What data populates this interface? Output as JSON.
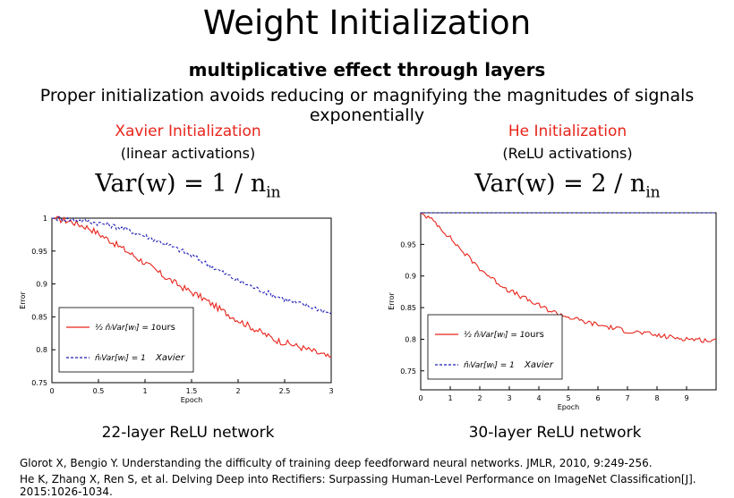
{
  "title": "Weight Initialization",
  "subtitle": "multiplicative effect through layers",
  "tagline": "Proper initialization avoids reducing or magnifying the magnitudes of signals exponentially",
  "left_panel": {
    "method": "Xavier Initialization",
    "activation": "(linear activations)",
    "formula_lhs": "Var(w) = 1 / n",
    "formula_sub": "in",
    "network": "22-layer ReLU network"
  },
  "right_panel": {
    "method": "He Initialization",
    "activation": "(ReLU activations)",
    "formula_lhs": "Var(w) = 2 / n",
    "formula_sub": "in",
    "network": "30-layer ReLU network"
  },
  "references": [
    "Glorot X, Bengio Y. Understanding the difficulty of training deep feedforward neural networks. JMLR, 2010, 9:249-256.",
    "He K, Zhang X, Ren S, et al. Delving Deep into Rectifiers: Surpassing Human-Level Performance on ImageNet Classification[J]. 2015:1026-1034."
  ],
  "chart_data": [
    {
      "type": "line",
      "xlabel": "Epoch",
      "ylabel": "Error",
      "xlim": [
        0,
        3
      ],
      "ylim": [
        0.75,
        1.0
      ],
      "xticks": [
        "0",
        "0.5",
        "1",
        "1.5",
        "2",
        "2.5",
        "3"
      ],
      "yticks": [
        "0.75",
        "0.8",
        "0.85",
        "0.9",
        "0.95",
        "1"
      ],
      "legend_position": "bottom-left",
      "series": [
        {
          "name": "1/2 n̂ₗVar[wₗ] = 1  ours",
          "legend_math": "½ n̂ₗVar[wₗ] = 1",
          "legend_tag": "ours",
          "color": "#e8251c",
          "style": "solid",
          "x": [
            0,
            0.2,
            0.4,
            0.6,
            0.8,
            1.0,
            1.2,
            1.4,
            1.6,
            1.8,
            2.0,
            2.2,
            2.4,
            2.6,
            2.8,
            3.0
          ],
          "y": [
            1.0,
            0.995,
            0.985,
            0.968,
            0.95,
            0.932,
            0.912,
            0.895,
            0.88,
            0.862,
            0.845,
            0.83,
            0.815,
            0.807,
            0.798,
            0.787
          ]
        },
        {
          "name": "n̂ₗVar[wₗ] = 1  Xavier",
          "legend_math": "n̂ₗVar[wₗ] = 1",
          "legend_tag": "Xavier",
          "color": "#1f1fb4",
          "style": "dashed",
          "x": [
            0,
            0.2,
            0.4,
            0.6,
            0.8,
            1.0,
            1.2,
            1.4,
            1.6,
            1.8,
            2.0,
            2.2,
            2.4,
            2.6,
            2.8,
            3.0
          ],
          "y": [
            1.0,
            0.998,
            0.995,
            0.99,
            0.983,
            0.973,
            0.962,
            0.95,
            0.936,
            0.92,
            0.905,
            0.893,
            0.882,
            0.872,
            0.865,
            0.855
          ]
        }
      ]
    },
    {
      "type": "line",
      "xlabel": "Epoch",
      "ylabel": "Error",
      "xlim": [
        0,
        10
      ],
      "ylim": [
        0.72,
        1.0
      ],
      "xticks": [
        "0",
        "1",
        "2",
        "3",
        "4",
        "5",
        "6",
        "7",
        "8",
        "9"
      ],
      "yticks": [
        "0.75",
        "0.8",
        "0.85",
        "0.9",
        "0.95"
      ],
      "legend_position": "bottom-left",
      "series": [
        {
          "name": "1/2 n̂ₗVar[wₗ] = 1  ours",
          "legend_math": "½ n̂ₗVar[wₗ] = 1",
          "legend_tag": "ours",
          "color": "#e8251c",
          "style": "solid",
          "x": [
            0,
            0.5,
            1,
            1.5,
            2,
            2.5,
            3,
            3.5,
            4,
            4.5,
            5,
            5.5,
            6,
            6.5,
            7,
            7.5,
            8,
            8.5,
            9,
            9.5,
            10
          ],
          "y": [
            1.0,
            0.985,
            0.96,
            0.935,
            0.912,
            0.893,
            0.877,
            0.865,
            0.853,
            0.843,
            0.835,
            0.828,
            0.823,
            0.818,
            0.813,
            0.81,
            0.806,
            0.803,
            0.801,
            0.799,
            0.797
          ]
        },
        {
          "name": "n̂ₗVar[wₗ] = 1  Xavier",
          "legend_math": "n̂ₗVar[wₗ] = 1",
          "legend_tag": "Xavier",
          "color": "#1f1fb4",
          "style": "dashed",
          "x": [
            0,
            10
          ],
          "y": [
            1.0,
            1.0
          ]
        }
      ]
    }
  ]
}
